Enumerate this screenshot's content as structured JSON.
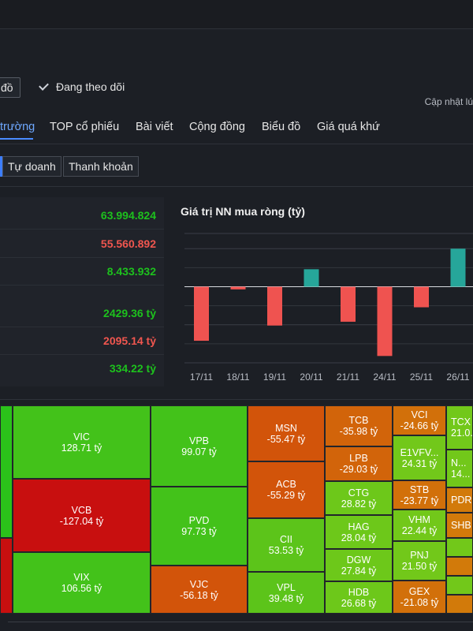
{
  "toolbar": {
    "map_label": "đồ",
    "follow_label": "Đang theo dõi",
    "updated_label": "Cập nhật lú"
  },
  "tabs": [
    {
      "label": "trường"
    },
    {
      "label": "TOP cổ phiếu"
    },
    {
      "label": "Bài viết"
    },
    {
      "label": "Cộng đồng"
    },
    {
      "label": "Biểu đồ"
    },
    {
      "label": "Giá quá khứ"
    }
  ],
  "subtabs": [
    {
      "label": "Tự doanh"
    },
    {
      "label": "Thanh khoản"
    }
  ],
  "stats": [
    {
      "value": "63.994.824",
      "color": "#1dc11d"
    },
    {
      "value": "55.560.892",
      "color": "#f0564f"
    },
    {
      "value": "8.433.932",
      "color": "#1dc11d"
    },
    {
      "value": "2429.36 tỷ",
      "color": "#1dc11d"
    },
    {
      "value": "2095.14 tỷ",
      "color": "#f0564f"
    },
    {
      "value": "334.22 tỷ",
      "color": "#1dc11d"
    }
  ],
  "chart_data": {
    "type": "bar",
    "title": "Giá trị NN mua ròng (tỷ)",
    "categories": [
      "17/11",
      "18/11",
      "19/11",
      "20/11",
      "21/11",
      "24/11",
      "25/11",
      "26/11"
    ],
    "values": [
      -710,
      -35,
      -510,
      230,
      -460,
      -910,
      -270,
      500
    ],
    "ylim": [
      -1000,
      700
    ],
    "grid": true,
    "colors": {
      "positive": "#26a69a",
      "negative": "#ef5350"
    }
  },
  "treemap": [
    {
      "ticker": "VIC",
      "value": "128.71 tỷ",
      "color": "#43c21a"
    },
    {
      "ticker": "VCB",
      "value": "-127.04 tỷ",
      "color": "#c80f0f"
    },
    {
      "ticker": "VIX",
      "value": "106.56 tỷ",
      "color": "#43c21a"
    },
    {
      "ticker": "VPB",
      "value": "99.07 tỷ",
      "color": "#43c21a"
    },
    {
      "ticker": "PVD",
      "value": "97.73 tỷ",
      "color": "#43c21a"
    },
    {
      "ticker": "VJC",
      "value": "-56.18 tỷ",
      "color": "#d2540a"
    },
    {
      "ticker": "MSN",
      "value": "-55.47 tỷ",
      "color": "#d2540a"
    },
    {
      "ticker": "ACB",
      "value": "-55.29 tỷ",
      "color": "#d2540a"
    },
    {
      "ticker": "CII",
      "value": "53.53 tỷ",
      "color": "#5cc41a"
    },
    {
      "ticker": "VPL",
      "value": "39.48 tỷ",
      "color": "#5cc41a"
    },
    {
      "ticker": "TCB",
      "value": "-35.98 tỷ",
      "color": "#d2640a"
    },
    {
      "ticker": "LPB",
      "value": "-29.03 tỷ",
      "color": "#d2640a"
    },
    {
      "ticker": "CTG",
      "value": "28.82 tỷ",
      "color": "#6dc81a"
    },
    {
      "ticker": "HAG",
      "value": "28.04 tỷ",
      "color": "#6dc81a"
    },
    {
      "ticker": "DGW",
      "value": "27.84 tỷ",
      "color": "#6dc81a"
    },
    {
      "ticker": "HDB",
      "value": "26.68 tỷ",
      "color": "#6dc81a"
    },
    {
      "ticker": "VCI",
      "value": "-24.66 tỷ",
      "color": "#d2700a"
    },
    {
      "ticker": "E1VFV...",
      "value": "24.31 tỷ",
      "color": "#72c81a"
    },
    {
      "ticker": "STB",
      "value": "-23.77 tỷ",
      "color": "#d2700a"
    },
    {
      "ticker": "VHM",
      "value": "22.44 tỷ",
      "color": "#72c81a"
    },
    {
      "ticker": "PNJ",
      "value": "21.50 tỷ",
      "color": "#72c81a"
    },
    {
      "ticker": "GEX",
      "value": "-21.08 tỷ",
      "color": "#d2700a"
    },
    {
      "ticker": "TCX",
      "value": "21.0...",
      "color": "#72c81a"
    },
    {
      "ticker": "N...",
      "value": "14...",
      "color": "#72c81a"
    },
    {
      "ticker": "PDR",
      "value": "",
      "color": "#d27a0a"
    },
    {
      "ticker": "SHB",
      "value": "",
      "color": "#d27a0a"
    }
  ]
}
